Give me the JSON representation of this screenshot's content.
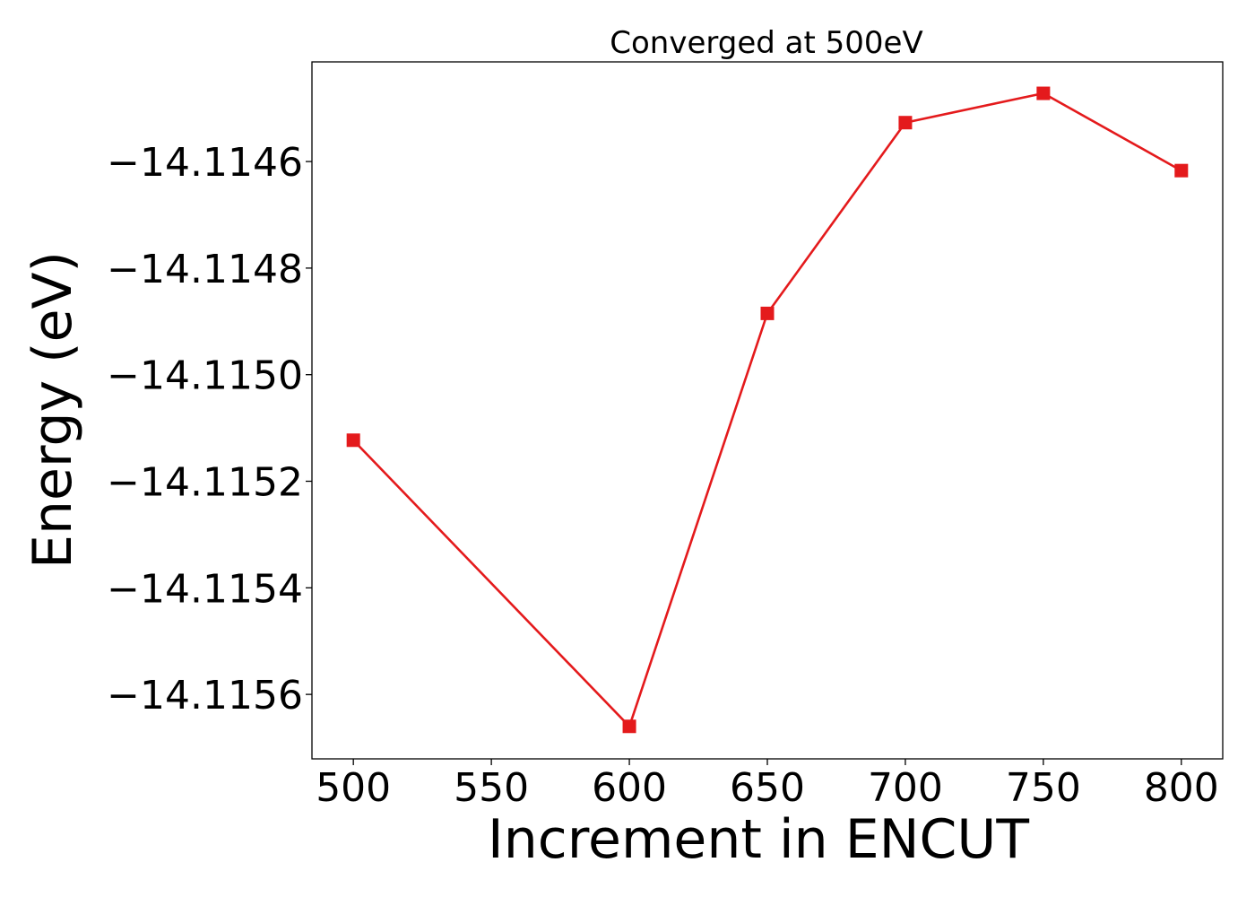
{
  "chart_data": {
    "type": "line",
    "title": "Converged at 500eV",
    "xlabel": "Increment in ENCUT",
    "ylabel": "Energy (eV)",
    "x": [
      500,
      600,
      650,
      700,
      750,
      800
    ],
    "series": [
      {
        "values": [
          -14.115123,
          -14.11566,
          -14.114885,
          -14.114527,
          -14.114472,
          -14.114617
        ],
        "color": "#e41a1c",
        "marker": "square"
      }
    ],
    "xticks": [
      500,
      550,
      600,
      650,
      700,
      750,
      800
    ],
    "xtick_labels": [
      "500",
      "550",
      "600",
      "650",
      "700",
      "750",
      "800"
    ],
    "yticks": [
      -14.1156,
      -14.1154,
      -14.1152,
      -14.115,
      -14.1148,
      -14.1146
    ],
    "ytick_labels": [
      "−14.1156",
      "−14.1154",
      "−14.1152",
      "−14.1150",
      "−14.1148",
      "−14.1146"
    ],
    "xlim": [
      485,
      815
    ],
    "ylim": [
      -14.115721,
      -14.114413
    ],
    "grid": false,
    "legend": "none"
  }
}
